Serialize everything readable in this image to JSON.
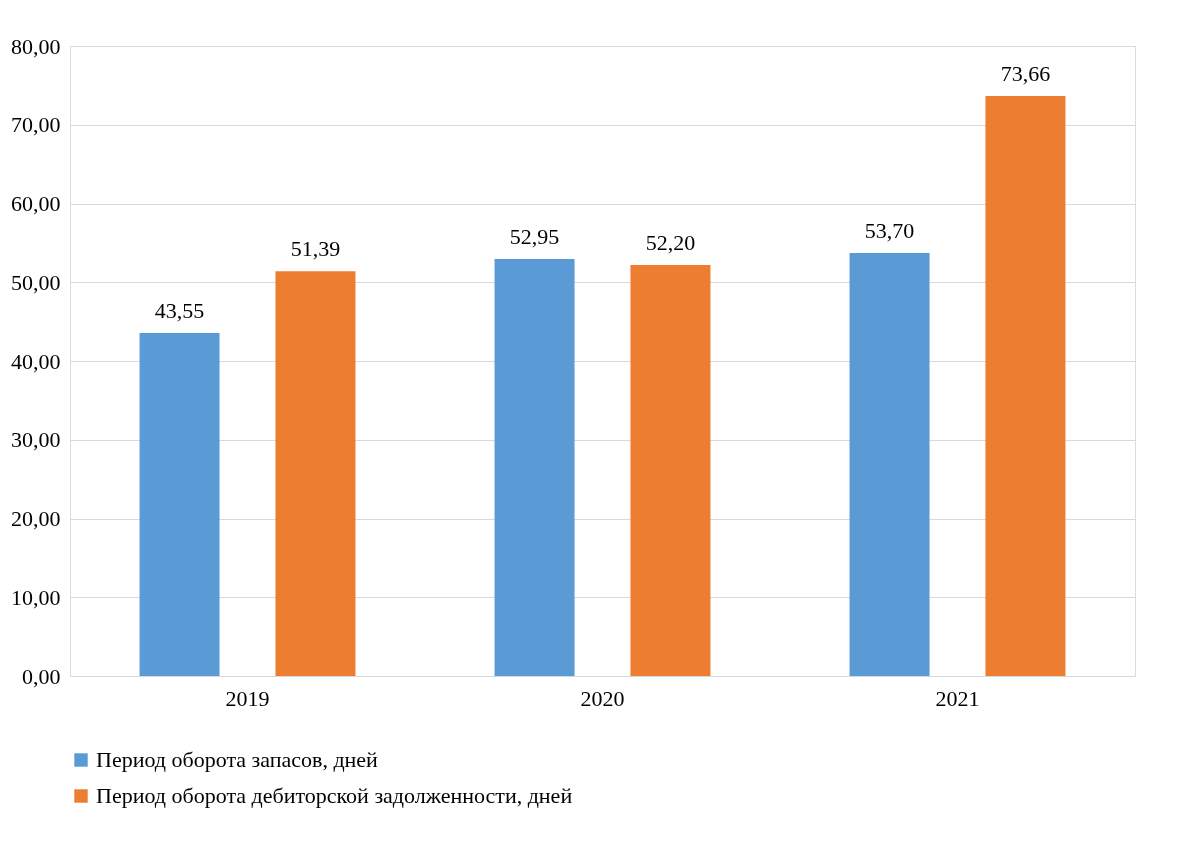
{
  "chart_data": {
    "type": "bar",
    "categories": [
      "2019",
      "2020",
      "2021"
    ],
    "series": [
      {
        "name": "Период оборота запасов, дней",
        "color": "#5b9bd5",
        "values": [
          43.55,
          52.95,
          53.7
        ],
        "value_labels": [
          "43,55",
          "52,95",
          "53,70"
        ]
      },
      {
        "name": "Период оборота дебиторской задолженности, дней",
        "color": "#ed7d31",
        "values": [
          51.39,
          52.2,
          73.66
        ],
        "value_labels": [
          "51,39",
          "52,20",
          "73,66"
        ]
      }
    ],
    "ylim": [
      0,
      80
    ],
    "yticks": [
      {
        "value": 0,
        "label": "0,00"
      },
      {
        "value": 10,
        "label": "10,00"
      },
      {
        "value": 20,
        "label": "20,00"
      },
      {
        "value": 30,
        "label": "30,00"
      },
      {
        "value": 40,
        "label": "40,00"
      },
      {
        "value": 50,
        "label": "50,00"
      },
      {
        "value": 60,
        "label": "60,00"
      },
      {
        "value": 70,
        "label": "70,00"
      },
      {
        "value": 80,
        "label": "80,00"
      }
    ],
    "grid": "y",
    "legend": "bottom"
  }
}
